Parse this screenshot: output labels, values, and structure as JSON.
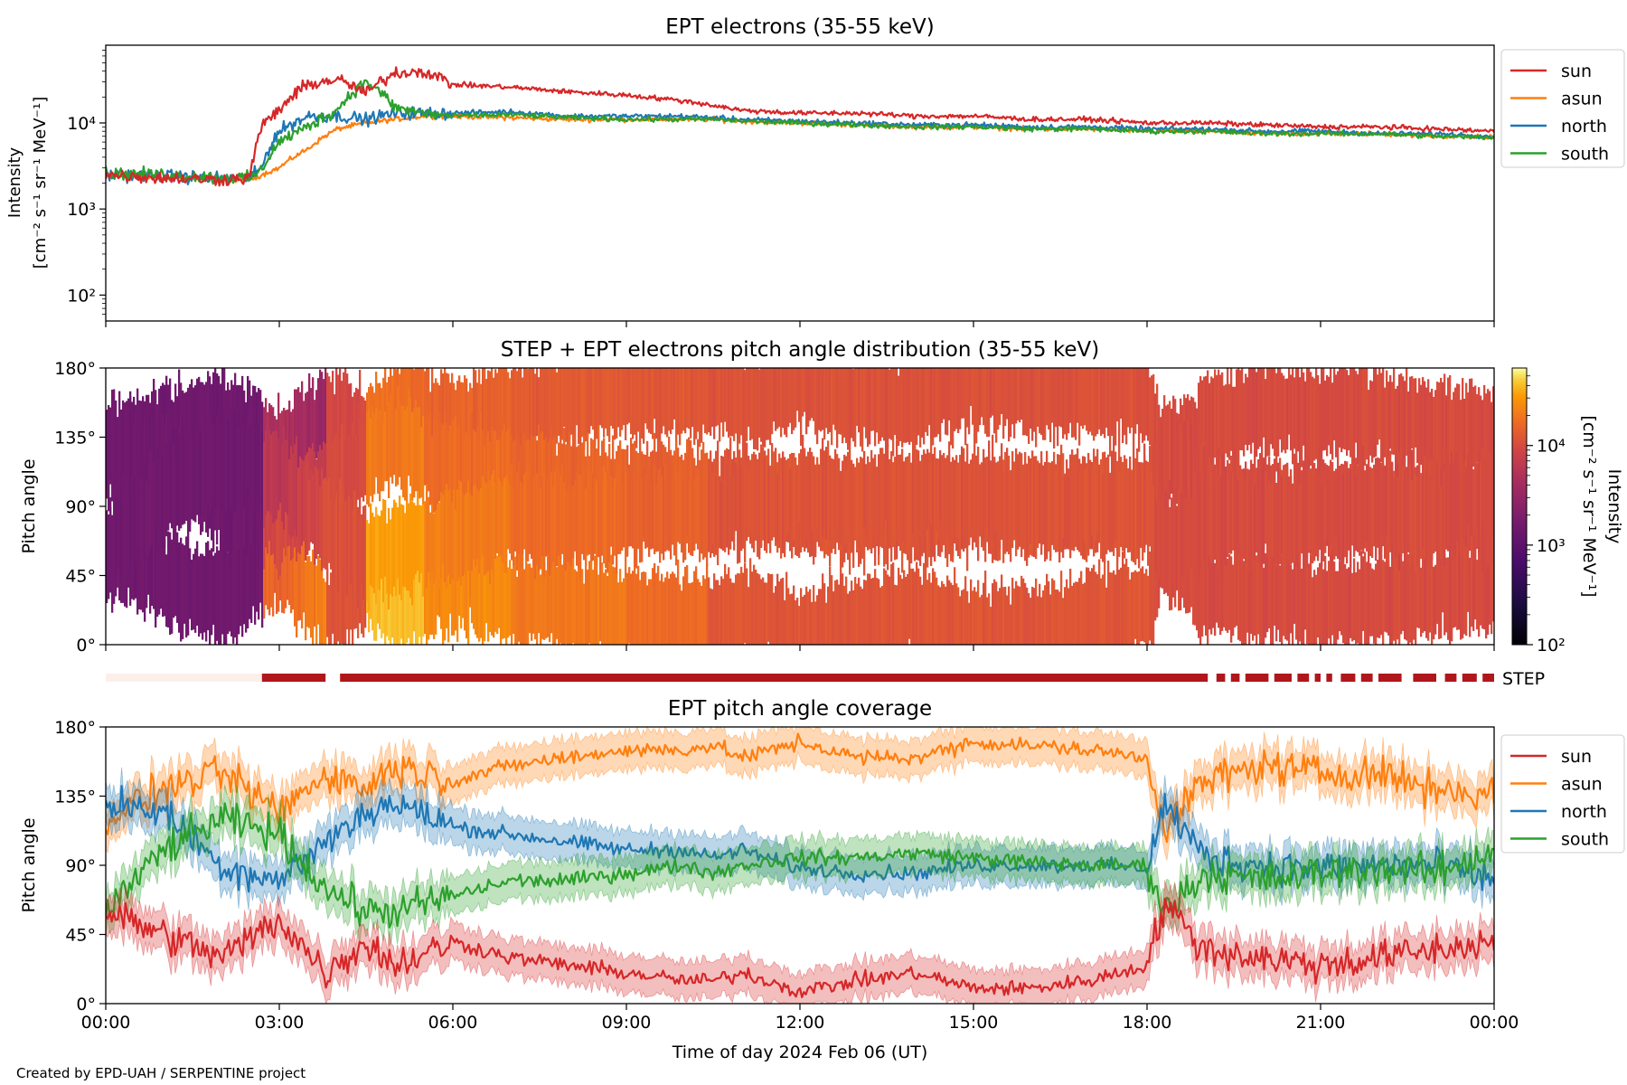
{
  "figure": {
    "credit": "Created by EPD-UAH / SERPENTINE project",
    "xlabel": "Time of day 2024 Feb 06 (UT)",
    "x_ticks": [
      "00:00",
      "03:00",
      "06:00",
      "09:00",
      "12:00",
      "15:00",
      "18:00",
      "21:00",
      "00:00"
    ]
  },
  "colors": {
    "sun": "#d62728",
    "asun": "#ff7f0e",
    "north": "#1f77b4",
    "south": "#2ca02c",
    "step_bar": "#b0171c",
    "step_bar_faint": "#fcefea"
  },
  "chart_data": [
    {
      "type": "line",
      "title": "EPT electrons (35-55 keV)",
      "ylabel": "Intensity",
      "ylabel_units": "[cm⁻² s⁻¹ sr⁻¹ MeV⁻¹]",
      "yscale": "log",
      "ylim": [
        50,
        80000
      ],
      "y_ticks": [
        "10²",
        "10³",
        "10⁴"
      ],
      "xlim_hours": [
        0,
        24
      ],
      "legend": "right, outside",
      "x_hours": [
        0,
        1,
        2,
        2.5,
        2.7,
        3,
        3.5,
        4,
        4.5,
        5,
        5.5,
        6,
        7,
        8,
        9,
        10,
        10.5,
        11,
        12,
        13,
        14,
        15,
        16,
        17,
        18,
        19,
        20,
        21,
        22,
        23,
        24
      ],
      "series": [
        {
          "name": "sun",
          "values": [
            2500,
            2300,
            2200,
            2300,
            9000,
            14000,
            28000,
            32000,
            22000,
            38000,
            40000,
            28000,
            26000,
            23000,
            21000,
            18000,
            16000,
            14000,
            13000,
            13000,
            12000,
            12000,
            11000,
            11000,
            10000,
            10000,
            9500,
            9000,
            9000,
            8500,
            8000
          ]
        },
        {
          "name": "asun",
          "values": [
            2400,
            2300,
            2200,
            2200,
            2500,
            3000,
            5000,
            8500,
            10000,
            11000,
            12000,
            12000,
            11500,
            11000,
            11000,
            11000,
            11000,
            10500,
            10000,
            9500,
            9000,
            9000,
            8500,
            8500,
            8000,
            8000,
            7500,
            7500,
            7500,
            7000,
            6800
          ]
        },
        {
          "name": "north",
          "values": [
            2500,
            2400,
            2300,
            2300,
            3000,
            8000,
            12000,
            12000,
            11000,
            13000,
            13000,
            13000,
            13500,
            12000,
            12000,
            12000,
            11500,
            11000,
            10500,
            10000,
            9500,
            9500,
            9000,
            9000,
            8500,
            8500,
            8000,
            8000,
            7500,
            7500,
            7000
          ]
        },
        {
          "name": "south",
          "values": [
            2600,
            2500,
            2300,
            2300,
            2800,
            6000,
            9000,
            14000,
            30000,
            15000,
            13000,
            12000,
            12500,
            11500,
            11000,
            11000,
            11000,
            10500,
            10000,
            9500,
            9000,
            9000,
            8500,
            8500,
            8000,
            8000,
            7500,
            7500,
            7500,
            7000,
            6800
          ]
        }
      ]
    },
    {
      "type": "heatmap",
      "title": "STEP + EPT electrons pitch angle distribution (35-55 keV)",
      "ylabel": "Pitch angle",
      "y_ticks": [
        "0°",
        "45°",
        "90°",
        "135°",
        "180°"
      ],
      "ylim": [
        0,
        180
      ],
      "xlim_hours": [
        0,
        24
      ],
      "colorbar": {
        "label": "Intensity",
        "units": "[cm⁻² s⁻¹ sr⁻¹ MeV⁻¹]",
        "scale": "log",
        "range": [
          100,
          60000
        ],
        "ticks": [
          "10²",
          "10³",
          "10⁴"
        ],
        "colormap": "inferno"
      },
      "time_bins_hours": [
        0,
        2.7,
        3.8,
        4.5,
        5.5,
        7,
        9,
        10.4,
        11,
        18.1,
        24
      ],
      "low_pitch_intensity": [
        1500,
        35000,
        12000,
        50000,
        30000,
        22000,
        18000,
        12000,
        12000,
        10000
      ],
      "high_pitch_intensity": [
        1500,
        2000,
        9000,
        14000,
        12500,
        12000,
        11500,
        11000,
        11000,
        10000
      ]
    },
    {
      "type": "bar",
      "label": "STEP",
      "xlim_hours": [
        0,
        24
      ],
      "active_intervals_hours": [
        [
          2.7,
          3.8
        ],
        [
          4.05,
          19.05
        ],
        [
          19.2,
          19.35
        ],
        [
          19.45,
          19.6
        ],
        [
          19.7,
          20.1
        ],
        [
          20.2,
          20.5
        ],
        [
          20.6,
          20.8
        ],
        [
          20.9,
          21.0
        ],
        [
          21.1,
          21.2
        ],
        [
          21.35,
          21.6
        ],
        [
          21.7,
          21.9
        ],
        [
          22.0,
          22.4
        ],
        [
          22.6,
          23.0
        ],
        [
          23.15,
          23.35
        ],
        [
          23.45,
          23.7
        ],
        [
          23.8,
          24.0
        ]
      ],
      "inactive_intervals_hours": [
        [
          0,
          2.7
        ]
      ]
    },
    {
      "type": "area",
      "title": "EPT pitch angle coverage",
      "ylabel": "Pitch angle",
      "y_ticks": [
        "0°",
        "45°",
        "90°",
        "135°",
        "180°"
      ],
      "ylim": [
        0,
        180
      ],
      "xlim_hours": [
        0,
        24
      ],
      "legend": "right, outside",
      "x_hours": [
        0,
        1,
        2,
        3,
        3.8,
        4.5,
        5,
        6,
        7,
        8,
        9,
        10,
        10.5,
        11,
        12,
        13,
        14,
        15,
        16,
        17,
        18,
        18.3,
        19,
        20,
        21,
        22,
        23,
        24
      ],
      "series": [
        {
          "name": "sun",
          "values": [
            60,
            45,
            30,
            55,
            20,
            40,
            25,
            40,
            30,
            25,
            20,
            15,
            15,
            20,
            8,
            15,
            20,
            10,
            10,
            15,
            25,
            65,
            35,
            30,
            25,
            30,
            35,
            40
          ],
          "band_halfwidth": 12
        },
        {
          "name": "asun",
          "values": [
            120,
            140,
            150,
            125,
            150,
            140,
            155,
            145,
            155,
            160,
            165,
            165,
            168,
            160,
            170,
            160,
            160,
            170,
            168,
            165,
            160,
            115,
            145,
            155,
            150,
            150,
            140,
            135
          ],
          "band_halfwidth": 12
        },
        {
          "name": "north",
          "values": [
            130,
            125,
            90,
            80,
            105,
            125,
            130,
            115,
            110,
            105,
            100,
            100,
            95,
            100,
            88,
            85,
            85,
            90,
            90,
            90,
            88,
            130,
            95,
            90,
            88,
            90,
            90,
            80
          ],
          "band_halfwidth": 12
        },
        {
          "name": "south",
          "values": [
            60,
            100,
            120,
            110,
            75,
            60,
            60,
            70,
            80,
            80,
            85,
            90,
            85,
            90,
            95,
            95,
            98,
            95,
            92,
            90,
            90,
            60,
            85,
            80,
            85,
            88,
            85,
            100
          ],
          "band_halfwidth": 12
        }
      ]
    }
  ]
}
